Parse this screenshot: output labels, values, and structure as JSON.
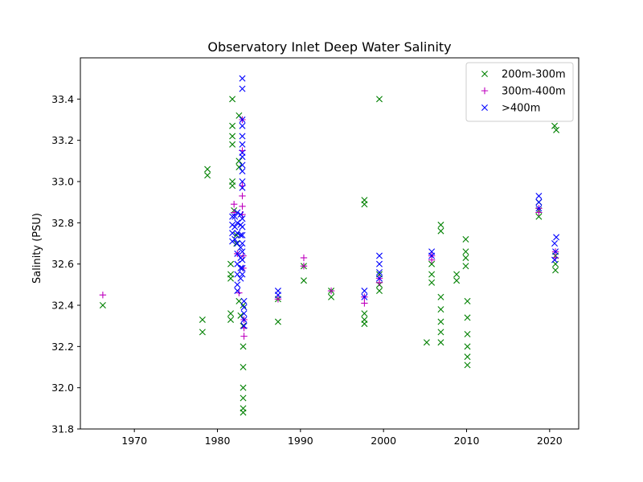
{
  "chart_data": {
    "type": "scatter",
    "title": "Observatory Inlet Deep Water Salinity",
    "xlabel": "",
    "ylabel": "Salinity (PSU)",
    "xlim": [
      1963.5,
      2023.5
    ],
    "ylim": [
      31.8,
      33.6
    ],
    "xticks": [
      1970,
      1980,
      1990,
      2000,
      2010,
      2020
    ],
    "yticks": [
      31.8,
      32.0,
      32.2,
      32.4,
      32.6,
      32.8,
      33.0,
      33.2,
      33.4
    ],
    "grid": false,
    "legend_position": "top-right",
    "series": [
      {
        "name": "200m-300m",
        "marker": "x",
        "color": "#008000",
        "points": [
          [
            1966.2,
            32.4
          ],
          [
            1978.2,
            32.33
          ],
          [
            1978.2,
            32.27
          ],
          [
            1978.8,
            33.06
          ],
          [
            1978.8,
            33.03
          ],
          [
            1981.8,
            33.4
          ],
          [
            1981.8,
            33.27
          ],
          [
            1981.8,
            33.22
          ],
          [
            1981.8,
            33.18
          ],
          [
            1981.8,
            33.0
          ],
          [
            1981.8,
            32.98
          ],
          [
            1981.6,
            32.6
          ],
          [
            1981.6,
            32.55
          ],
          [
            1981.6,
            32.53
          ],
          [
            1981.6,
            32.36
          ],
          [
            1981.6,
            32.33
          ],
          [
            1982.0,
            32.86
          ],
          [
            1982.3,
            32.74
          ],
          [
            1982.3,
            32.7
          ],
          [
            1982.6,
            33.32
          ],
          [
            1982.6,
            33.1
          ],
          [
            1982.6,
            33.07
          ],
          [
            1982.6,
            32.42
          ],
          [
            1982.8,
            32.35
          ],
          [
            1983.1,
            32.4
          ],
          [
            1983.1,
            32.3
          ],
          [
            1983.1,
            32.2
          ],
          [
            1983.1,
            32.1
          ],
          [
            1983.1,
            32.0
          ],
          [
            1983.1,
            31.95
          ],
          [
            1983.1,
            31.9
          ],
          [
            1983.1,
            31.88
          ],
          [
            1987.3,
            32.43
          ],
          [
            1987.3,
            32.32
          ],
          [
            1990.4,
            32.59
          ],
          [
            1990.4,
            32.52
          ],
          [
            1993.7,
            32.47
          ],
          [
            1993.7,
            32.44
          ],
          [
            1997.7,
            32.91
          ],
          [
            1997.7,
            32.89
          ],
          [
            1997.7,
            32.36
          ],
          [
            1997.7,
            32.33
          ],
          [
            1997.7,
            32.31
          ],
          [
            1999.5,
            33.4
          ],
          [
            1999.5,
            32.55
          ],
          [
            1999.5,
            32.5
          ],
          [
            1999.5,
            32.47
          ],
          [
            2005.2,
            32.22
          ],
          [
            2005.8,
            32.6
          ],
          [
            2005.8,
            32.55
          ],
          [
            2005.8,
            32.51
          ],
          [
            2006.9,
            32.79
          ],
          [
            2006.9,
            32.76
          ],
          [
            2006.9,
            32.44
          ],
          [
            2006.9,
            32.38
          ],
          [
            2006.9,
            32.32
          ],
          [
            2006.9,
            32.27
          ],
          [
            2006.9,
            32.22
          ],
          [
            2008.8,
            32.55
          ],
          [
            2008.8,
            32.52
          ],
          [
            2009.9,
            32.72
          ],
          [
            2009.9,
            32.66
          ],
          [
            2009.9,
            32.63
          ],
          [
            2009.9,
            32.59
          ],
          [
            2010.1,
            32.42
          ],
          [
            2010.1,
            32.34
          ],
          [
            2010.1,
            32.26
          ],
          [
            2010.1,
            32.2
          ],
          [
            2010.1,
            32.15
          ],
          [
            2010.1,
            32.11
          ],
          [
            2018.7,
            32.9
          ],
          [
            2018.7,
            32.86
          ],
          [
            2018.7,
            32.83
          ],
          [
            2020.6,
            33.27
          ],
          [
            2020.8,
            33.25
          ],
          [
            2020.7,
            32.64
          ],
          [
            2020.7,
            32.6
          ],
          [
            2020.7,
            32.57
          ]
        ]
      },
      {
        "name": "300m-400m",
        "marker": "+",
        "color": "#bf00bf",
        "points": [
          [
            1966.2,
            32.45
          ],
          [
            1982.0,
            32.89
          ],
          [
            1982.0,
            32.85
          ],
          [
            1982.4,
            32.65
          ],
          [
            1982.6,
            32.46
          ],
          [
            1983.0,
            33.3
          ],
          [
            1983.0,
            33.15
          ],
          [
            1983.0,
            32.98
          ],
          [
            1983.0,
            32.93
          ],
          [
            1983.0,
            32.88
          ],
          [
            1983.0,
            32.84
          ],
          [
            1983.1,
            32.64
          ],
          [
            1983.1,
            32.58
          ],
          [
            1983.2,
            32.33
          ],
          [
            1983.2,
            32.29
          ],
          [
            1983.2,
            32.25
          ],
          [
            1987.3,
            32.43
          ],
          [
            1990.4,
            32.63
          ],
          [
            1990.4,
            32.59
          ],
          [
            1993.7,
            32.47
          ],
          [
            1997.7,
            32.44
          ],
          [
            1997.7,
            32.41
          ],
          [
            1999.5,
            32.53
          ],
          [
            1999.5,
            32.51
          ],
          [
            2005.8,
            32.64
          ],
          [
            2005.8,
            32.62
          ],
          [
            2018.7,
            32.87
          ],
          [
            2018.7,
            32.85
          ],
          [
            2020.7,
            32.66
          ],
          [
            2020.7,
            32.63
          ]
        ]
      },
      {
        "name": ">400m",
        "marker": "x",
        "color": "#0000ff",
        "points": [
          [
            1981.8,
            32.83
          ],
          [
            1981.8,
            32.79
          ],
          [
            1981.8,
            32.75
          ],
          [
            1981.8,
            32.71
          ],
          [
            1982.1,
            32.83
          ],
          [
            1982.1,
            32.78
          ],
          [
            1982.1,
            32.72
          ],
          [
            1982.4,
            32.85
          ],
          [
            1982.4,
            32.8
          ],
          [
            1982.4,
            32.75
          ],
          [
            1982.4,
            32.7
          ],
          [
            1982.4,
            32.65
          ],
          [
            1982.4,
            32.6
          ],
          [
            1982.4,
            32.55
          ],
          [
            1982.4,
            32.5
          ],
          [
            1982.4,
            32.47
          ],
          [
            1982.8,
            32.84
          ],
          [
            1982.8,
            32.79
          ],
          [
            1982.8,
            32.74
          ],
          [
            1982.8,
            32.68
          ],
          [
            1982.8,
            32.63
          ],
          [
            1982.8,
            32.58
          ],
          [
            1982.8,
            32.53
          ],
          [
            1983.0,
            33.5
          ],
          [
            1983.0,
            33.45
          ],
          [
            1983.0,
            33.3
          ],
          [
            1983.0,
            33.27
          ],
          [
            1983.0,
            33.22
          ],
          [
            1983.0,
            33.18
          ],
          [
            1983.0,
            33.14
          ],
          [
            1983.0,
            33.12
          ],
          [
            1983.0,
            33.08
          ],
          [
            1983.0,
            33.05
          ],
          [
            1983.0,
            33.0
          ],
          [
            1983.0,
            32.97
          ],
          [
            1983.0,
            32.82
          ],
          [
            1983.0,
            32.78
          ],
          [
            1983.0,
            32.74
          ],
          [
            1983.0,
            32.7
          ],
          [
            1983.0,
            32.66
          ],
          [
            1983.0,
            32.62
          ],
          [
            1983.0,
            32.58
          ],
          [
            1983.0,
            32.55
          ],
          [
            1983.2,
            32.42
          ],
          [
            1983.2,
            32.39
          ],
          [
            1983.2,
            32.36
          ],
          [
            1983.2,
            32.33
          ],
          [
            1983.2,
            32.3
          ],
          [
            1987.3,
            32.47
          ],
          [
            1987.3,
            32.45
          ],
          [
            1997.7,
            32.47
          ],
          [
            1997.7,
            32.44
          ],
          [
            1999.5,
            32.64
          ],
          [
            1999.5,
            32.6
          ],
          [
            1999.5,
            32.56
          ],
          [
            1999.5,
            32.53
          ],
          [
            2005.8,
            32.66
          ],
          [
            2005.8,
            32.64
          ],
          [
            2018.7,
            32.93
          ],
          [
            2018.7,
            32.9
          ],
          [
            2018.7,
            32.87
          ],
          [
            2020.8,
            32.73
          ],
          [
            2020.6,
            32.7
          ],
          [
            2020.7,
            32.66
          ],
          [
            2020.6,
            32.62
          ]
        ]
      }
    ]
  }
}
